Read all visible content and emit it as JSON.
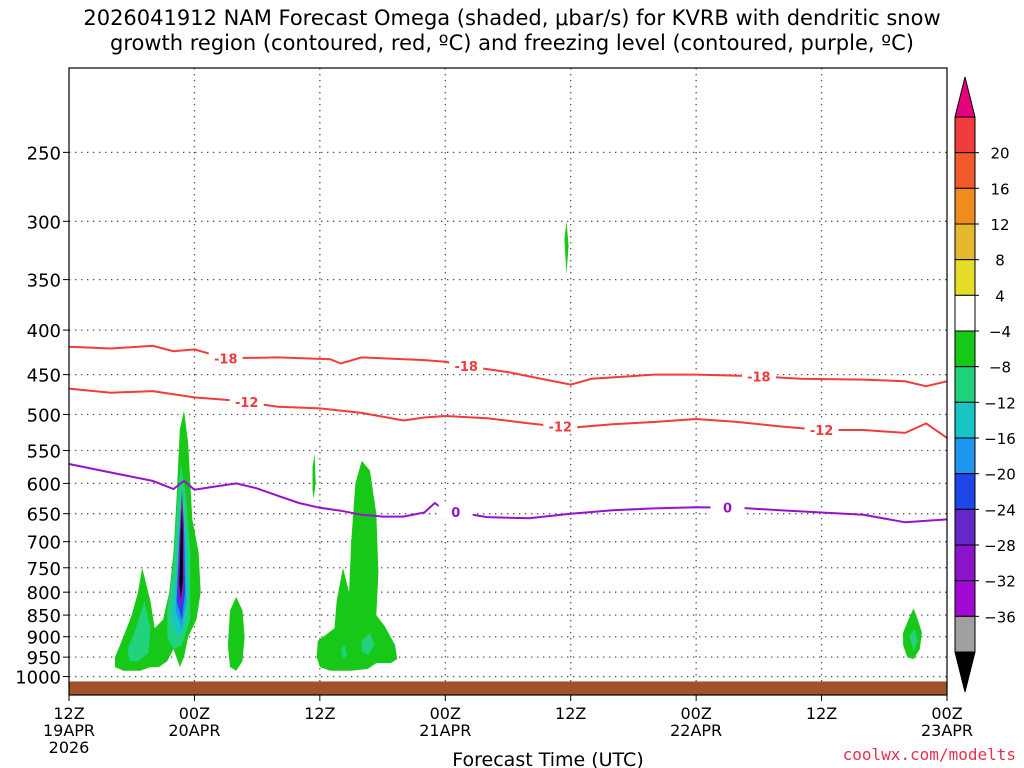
{
  "title": {
    "line1": "2026041912 NAM Forecast Omega (shaded, μbar/s) for KVRB with dendritic snow",
    "line2": "growth region (contoured, red, ºC) and freezing level (contoured, purple, ºC)"
  },
  "credit": "coolwx.com/modelts",
  "chart_data": {
    "type": "contour",
    "xlabel": "Forecast Time (UTC)",
    "xlim": [
      "2026-04-19T12:00Z",
      "2026-04-23T00:00Z"
    ],
    "ylim_hpa": [
      1050,
      200
    ],
    "y_scale": "log-pressure",
    "grid": "dotted",
    "x_ticks": [
      {
        "h": 0,
        "lines": [
          "12Z",
          "19APR",
          "2026"
        ]
      },
      {
        "h": 12,
        "lines": [
          "00Z",
          "20APR"
        ]
      },
      {
        "h": 24,
        "lines": [
          "12Z"
        ]
      },
      {
        "h": 36,
        "lines": [
          "00Z",
          "21APR"
        ]
      },
      {
        "h": 48,
        "lines": [
          "12Z"
        ]
      },
      {
        "h": 60,
        "lines": [
          "00Z",
          "22APR"
        ]
      },
      {
        "h": 72,
        "lines": [
          "12Z"
        ]
      },
      {
        "h": 84,
        "lines": [
          "00Z",
          "23APR"
        ]
      }
    ],
    "y_ticks": [
      250,
      300,
      350,
      400,
      450,
      500,
      550,
      600,
      650,
      700,
      750,
      800,
      850,
      900,
      950,
      1000
    ],
    "colorbar": {
      "labels": [
        20,
        16,
        12,
        8,
        4,
        -4,
        -8,
        -12,
        -16,
        -20,
        -24,
        -28,
        -32,
        -36
      ],
      "colors": [
        "#e6007e",
        "#f03c3c",
        "#f25a2c",
        "#f08c1e",
        "#e6b82d",
        "#e6dd28",
        "#ffffff",
        "#18c818",
        "#20d27c",
        "#18c4c4",
        "#1e96f0",
        "#1e46e6",
        "#6428c8",
        "#8c14c8",
        "#a00ad2",
        "#a0a0a0",
        "#000000"
      ]
    },
    "contours": [
      {
        "name": "-18",
        "color": "#f03c3c",
        "label_at_h": [
          15,
          38,
          66
        ],
        "points": [
          [
            0,
            418
          ],
          [
            4,
            420
          ],
          [
            8,
            417
          ],
          [
            10,
            423
          ],
          [
            12,
            421
          ],
          [
            15,
            431
          ],
          [
            20,
            430
          ],
          [
            25,
            432
          ],
          [
            26,
            437
          ],
          [
            28,
            430
          ],
          [
            34,
            433
          ],
          [
            36,
            435
          ],
          [
            38,
            440
          ],
          [
            42,
            447
          ],
          [
            46,
            457
          ],
          [
            48,
            462
          ],
          [
            50,
            455
          ],
          [
            56,
            450
          ],
          [
            60,
            450
          ],
          [
            66,
            452
          ],
          [
            70,
            455
          ],
          [
            76,
            456
          ],
          [
            80,
            458
          ],
          [
            82,
            464
          ],
          [
            84,
            458
          ]
        ]
      },
      {
        "name": "-12",
        "color": "#f03c3c",
        "label_at_h": [
          17,
          47,
          72
        ],
        "points": [
          [
            0,
            467
          ],
          [
            4,
            472
          ],
          [
            8,
            470
          ],
          [
            12,
            478
          ],
          [
            16,
            482
          ],
          [
            20,
            490
          ],
          [
            24,
            492
          ],
          [
            28,
            498
          ],
          [
            32,
            508
          ],
          [
            34,
            504
          ],
          [
            36,
            502
          ],
          [
            40,
            505
          ],
          [
            44,
            512
          ],
          [
            48,
            518
          ],
          [
            52,
            513
          ],
          [
            56,
            510
          ],
          [
            60,
            506
          ],
          [
            64,
            510
          ],
          [
            68,
            516
          ],
          [
            72,
            521
          ],
          [
            76,
            521
          ],
          [
            80,
            525
          ],
          [
            82,
            512
          ],
          [
            84,
            532
          ]
        ]
      },
      {
        "name": "0",
        "color": "#9614c8",
        "label_at_h": [
          37,
          63
        ],
        "points": [
          [
            0,
            570
          ],
          [
            4,
            583
          ],
          [
            8,
            596
          ],
          [
            10,
            609
          ],
          [
            11,
            596
          ],
          [
            12,
            610
          ],
          [
            14,
            605
          ],
          [
            16,
            600
          ],
          [
            18,
            608
          ],
          [
            20,
            620
          ],
          [
            22,
            632
          ],
          [
            24,
            640
          ],
          [
            26,
            645
          ],
          [
            28,
            652
          ],
          [
            30,
            655
          ],
          [
            32,
            655
          ],
          [
            34,
            648
          ],
          [
            35,
            632
          ],
          [
            36,
            645
          ],
          [
            38,
            650
          ],
          [
            40,
            656
          ],
          [
            44,
            658
          ],
          [
            48,
            650
          ],
          [
            52,
            644
          ],
          [
            56,
            641
          ],
          [
            60,
            639
          ],
          [
            64,
            640
          ],
          [
            68,
            644
          ],
          [
            72,
            648
          ],
          [
            76,
            652
          ],
          [
            80,
            665
          ],
          [
            84,
            660
          ]
        ]
      }
    ],
    "omega_shading": [
      {
        "level": -4,
        "color": "#18c818",
        "poly": [
          [
            4.4,
            950
          ],
          [
            5.2,
            900
          ],
          [
            6.0,
            850
          ],
          [
            6.6,
            800
          ],
          [
            7.0,
            750
          ],
          [
            7.8,
            820
          ],
          [
            8.2,
            880
          ],
          [
            9.0,
            860
          ],
          [
            9.6,
            800
          ],
          [
            10.0,
            720
          ],
          [
            10.3,
            620
          ],
          [
            10.6,
            520
          ],
          [
            11.0,
            495
          ],
          [
            11.4,
            540
          ],
          [
            11.8,
            660
          ],
          [
            12.4,
            720
          ],
          [
            12.6,
            800
          ],
          [
            12.2,
            860
          ],
          [
            11.4,
            900
          ],
          [
            11.0,
            950
          ],
          [
            10.6,
            975
          ],
          [
            10.0,
            930
          ],
          [
            9.4,
            960
          ],
          [
            8.6,
            975
          ],
          [
            7.8,
            975
          ],
          [
            6.8,
            985
          ],
          [
            5.2,
            985
          ],
          [
            4.4,
            975
          ]
        ]
      },
      {
        "level": -4,
        "color": "#18c818",
        "poly": [
          [
            15.4,
            840
          ],
          [
            16.0,
            810
          ],
          [
            16.6,
            840
          ],
          [
            16.8,
            900
          ],
          [
            16.6,
            960
          ],
          [
            16.0,
            985
          ],
          [
            15.4,
            975
          ],
          [
            15.2,
            920
          ]
        ]
      },
      {
        "level": -4,
        "color": "#18c818",
        "poly": [
          [
            23.3,
            575
          ],
          [
            23.5,
            555
          ],
          [
            23.6,
            600
          ],
          [
            23.4,
            625
          ],
          [
            23.3,
            610
          ]
        ]
      },
      {
        "level": -4,
        "color": "#18c818",
        "poly": [
          [
            23.8,
            910
          ],
          [
            24.6,
            895
          ],
          [
            25.4,
            880
          ],
          [
            25.6,
            820
          ],
          [
            26.2,
            750
          ],
          [
            26.8,
            800
          ],
          [
            27.0,
            700
          ],
          [
            27.4,
            600
          ],
          [
            28.0,
            565
          ],
          [
            28.8,
            580
          ],
          [
            29.4,
            650
          ],
          [
            29.6,
            760
          ],
          [
            29.4,
            850
          ],
          [
            30.2,
            875
          ],
          [
            31.2,
            920
          ],
          [
            31.4,
            955
          ],
          [
            30.8,
            965
          ],
          [
            29.4,
            965
          ],
          [
            28.6,
            980
          ],
          [
            27.0,
            985
          ],
          [
            25.0,
            985
          ],
          [
            24.0,
            975
          ],
          [
            23.7,
            950
          ]
        ]
      },
      {
        "level": -4,
        "color": "#18c818",
        "poly": [
          [
            47.4,
            315
          ],
          [
            47.6,
            300
          ],
          [
            47.8,
            320
          ],
          [
            47.6,
            345
          ]
        ]
      },
      {
        "level": -4,
        "color": "#18c818",
        "poly": [
          [
            79.8,
            890
          ],
          [
            80.4,
            855
          ],
          [
            80.8,
            835
          ],
          [
            81.2,
            860
          ],
          [
            81.6,
            890
          ],
          [
            81.4,
            930
          ],
          [
            80.8,
            955
          ],
          [
            80.2,
            950
          ],
          [
            79.8,
            920
          ]
        ]
      },
      {
        "level": -8,
        "color": "#20d27c",
        "poly": [
          [
            5.6,
            930
          ],
          [
            6.4,
            880
          ],
          [
            7.2,
            820
          ],
          [
            7.8,
            880
          ],
          [
            7.6,
            940
          ],
          [
            6.6,
            960
          ],
          [
            5.8,
            960
          ]
        ]
      },
      {
        "level": -8,
        "color": "#20d27c",
        "poly": [
          [
            9.4,
            840
          ],
          [
            10.0,
            740
          ],
          [
            10.4,
            620
          ],
          [
            10.7,
            570
          ],
          [
            11.2,
            620
          ],
          [
            11.6,
            720
          ],
          [
            11.6,
            860
          ],
          [
            10.8,
            920
          ],
          [
            10.0,
            930
          ],
          [
            9.4,
            900
          ]
        ]
      },
      {
        "level": -8,
        "color": "#20d27c",
        "poly": [
          [
            28.0,
            910
          ],
          [
            28.8,
            890
          ],
          [
            29.2,
            920
          ],
          [
            28.6,
            945
          ],
          [
            28.0,
            935
          ]
        ]
      },
      {
        "level": -8,
        "color": "#20d27c",
        "poly": [
          [
            26.0,
            930
          ],
          [
            26.4,
            920
          ],
          [
            26.6,
            945
          ],
          [
            26.2,
            955
          ]
        ]
      },
      {
        "level": -8,
        "color": "#20d27c",
        "poly": [
          [
            80.4,
            900
          ],
          [
            80.9,
            880
          ],
          [
            81.2,
            910
          ],
          [
            80.8,
            935
          ]
        ]
      },
      {
        "level": -12,
        "color": "#18c4c4",
        "poly": [
          [
            9.8,
            860
          ],
          [
            10.3,
            740
          ],
          [
            10.6,
            640
          ],
          [
            11.2,
            680
          ],
          [
            11.4,
            800
          ],
          [
            11.0,
            880
          ],
          [
            10.4,
            900
          ]
        ]
      },
      {
        "level": -16,
        "color": "#1e96f0",
        "poly": [
          [
            10.2,
            840
          ],
          [
            10.5,
            700
          ],
          [
            10.8,
            640
          ],
          [
            11.1,
            700
          ],
          [
            11.2,
            820
          ],
          [
            10.8,
            880
          ]
        ]
      },
      {
        "level": -20,
        "color": "#1e46e6",
        "poly": [
          [
            10.3,
            820
          ],
          [
            10.6,
            680
          ],
          [
            10.8,
            625
          ],
          [
            11.0,
            680
          ],
          [
            11.1,
            800
          ],
          [
            10.8,
            860
          ]
        ]
      },
      {
        "level": -24,
        "color": "#6428c8",
        "poly": [
          [
            10.4,
            800
          ],
          [
            10.6,
            680
          ],
          [
            10.8,
            615
          ],
          [
            11.0,
            670
          ],
          [
            11.0,
            790
          ],
          [
            10.7,
            845
          ]
        ]
      },
      {
        "level": -28,
        "color": "#a00ad2",
        "poly": [
          [
            10.45,
            790
          ],
          [
            10.65,
            670
          ],
          [
            10.8,
            610
          ],
          [
            10.95,
            670
          ],
          [
            10.95,
            780
          ],
          [
            10.7,
            830
          ]
        ]
      },
      {
        "level": -36,
        "color": "#000000",
        "poly": [
          [
            10.55,
            780
          ],
          [
            10.7,
            680
          ],
          [
            10.8,
            640
          ],
          [
            10.9,
            690
          ],
          [
            10.9,
            775
          ],
          [
            10.7,
            815
          ]
        ]
      }
    ],
    "terrain": {
      "color": "#a0522d",
      "top_hpa": 1013
    }
  }
}
